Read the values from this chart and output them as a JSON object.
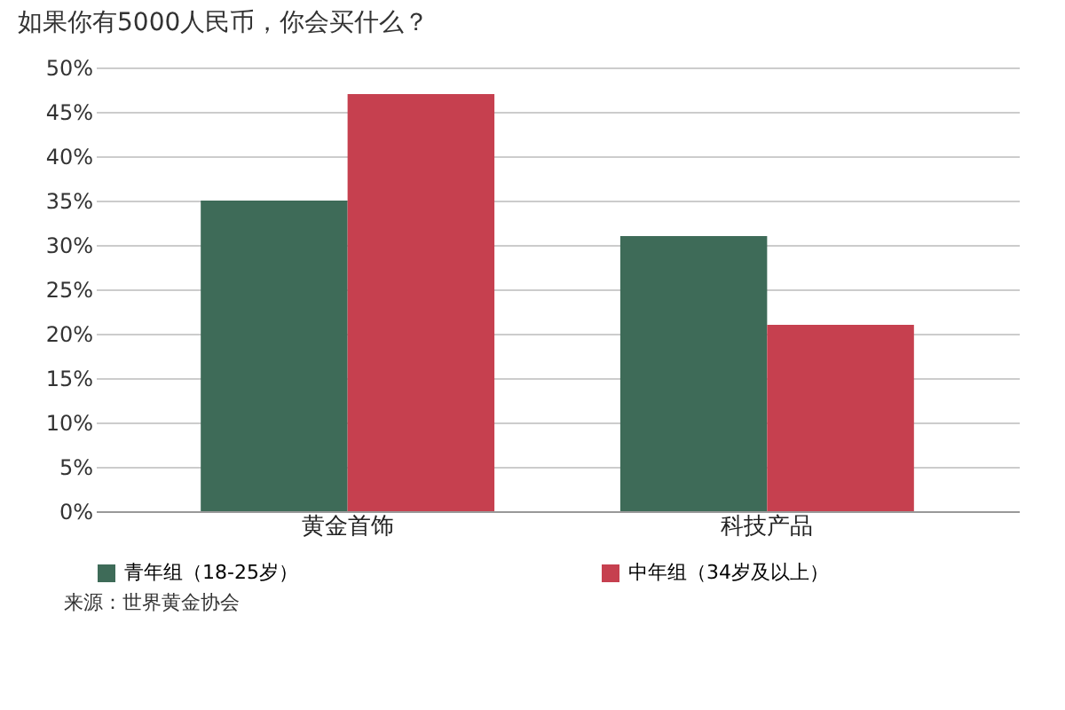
{
  "chart_data": {
    "type": "bar",
    "title": "如果你有5000人民币，你会买什么？",
    "categories": [
      "黄金首饰",
      "科技产品"
    ],
    "series": [
      {
        "name": "青年组（18-25岁）",
        "color": "#3e6b58",
        "values": [
          35,
          31
        ]
      },
      {
        "name": "中年组（34岁及以上）",
        "color": "#c6404f",
        "values": [
          47,
          21
        ]
      }
    ],
    "ylim": [
      0,
      50
    ],
    "yticks": [
      {
        "value": 0,
        "label": "0%"
      },
      {
        "value": 5,
        "label": "5%"
      },
      {
        "value": 10,
        "label": "10%"
      },
      {
        "value": 15,
        "label": "15%"
      },
      {
        "value": 20,
        "label": "20%"
      },
      {
        "value": 25,
        "label": "25%"
      },
      {
        "value": 30,
        "label": "30%"
      },
      {
        "value": 35,
        "label": "35%"
      },
      {
        "value": 40,
        "label": "40%"
      },
      {
        "value": 45,
        "label": "45%"
      },
      {
        "value": 50,
        "label": "50%"
      }
    ],
    "grid": "y",
    "legend": "bottom",
    "annotations": [
      "来源：世界黄金协会"
    ]
  }
}
